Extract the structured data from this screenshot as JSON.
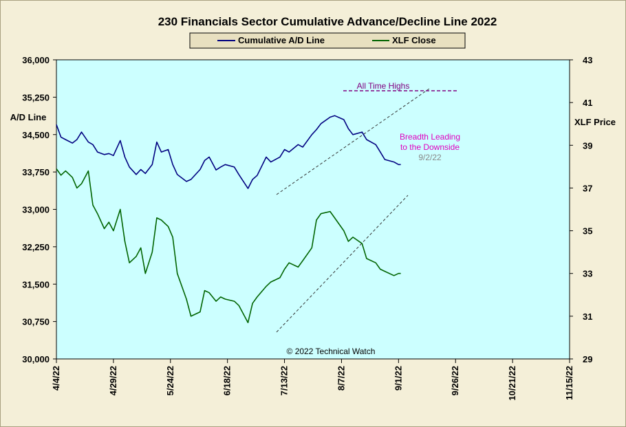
{
  "chart_data": {
    "type": "line",
    "title": "230 Financials  Sector Cumulative  Advance/Decline  Line 2022",
    "ylabel_left": "A/D Line",
    "ylabel_right": "XLF Price",
    "ylim_left": [
      30000,
      36000
    ],
    "ylim_right": [
      29,
      43
    ],
    "yticks_left": [
      "36,000",
      "35,250",
      "34,500",
      "33,750",
      "33,000",
      "32,250",
      "31,500",
      "30,750",
      "30,000"
    ],
    "yticks_right": [
      "43",
      "41",
      "39",
      "37",
      "35",
      "33",
      "31",
      "29"
    ],
    "x_ticks": [
      "4/4/22",
      "4/29/22",
      "5/24/22",
      "6/18/22",
      "7/13/22",
      "8/7/22",
      "9/1/22",
      "9/26/22",
      "10/21/22",
      "11/15/22"
    ],
    "x_range": [
      "4/4/22",
      "11/15/22"
    ],
    "grid": false,
    "legend_position": "top",
    "background_color": "#ccffff",
    "series": [
      {
        "name": "Cumulative A/D Line",
        "axis": "left",
        "color": "#000080",
        "x": [
          "4/4/22",
          "4/6/22",
          "4/8/22",
          "4/11/22",
          "4/13/22",
          "4/15/22",
          "4/18/22",
          "4/20/22",
          "4/22/22",
          "4/25/22",
          "4/27/22",
          "4/29/22",
          "5/2/22",
          "5/4/22",
          "5/6/22",
          "5/9/22",
          "5/11/22",
          "5/13/22",
          "5/16/22",
          "5/18/22",
          "5/20/22",
          "5/23/22",
          "5/25/22",
          "5/27/22",
          "5/31/22",
          "6/2/22",
          "6/6/22",
          "6/8/22",
          "6/10/22",
          "6/13/22",
          "6/15/22",
          "6/17/22",
          "6/21/22",
          "6/23/22",
          "6/27/22",
          "6/29/22",
          "7/1/22",
          "7/5/22",
          "7/7/22",
          "7/11/22",
          "7/13/22",
          "7/15/22",
          "7/19/22",
          "7/21/22",
          "7/25/22",
          "7/27/22",
          "7/29/22",
          "8/2/22",
          "8/4/22",
          "8/8/22",
          "8/10/22",
          "8/12/22",
          "8/16/22",
          "8/18/22",
          "8/22/22",
          "8/24/22",
          "8/26/22",
          "8/30/22",
          "9/1/22",
          "9/2/22"
        ],
        "values": [
          34700,
          34450,
          34400,
          34330,
          34400,
          34550,
          34350,
          34300,
          34150,
          34100,
          34120,
          34080,
          34380,
          34050,
          33850,
          33700,
          33800,
          33720,
          33900,
          34350,
          34150,
          34200,
          33900,
          33700,
          33560,
          33600,
          33800,
          33980,
          34050,
          33790,
          33850,
          33900,
          33850,
          33700,
          33420,
          33600,
          33680,
          34050,
          33950,
          34050,
          34200,
          34150,
          34300,
          34250,
          34500,
          34600,
          34720,
          34850,
          34880,
          34800,
          34620,
          34500,
          34550,
          34400,
          34300,
          34150,
          34000,
          33950,
          33900,
          33900
        ]
      },
      {
        "name": "XLF Close",
        "axis": "right",
        "color": "#006400",
        "x": [
          "4/4/22",
          "4/6/22",
          "4/8/22",
          "4/11/22",
          "4/13/22",
          "4/15/22",
          "4/18/22",
          "4/20/22",
          "4/22/22",
          "4/25/22",
          "4/27/22",
          "4/29/22",
          "5/2/22",
          "5/4/22",
          "5/6/22",
          "5/9/22",
          "5/11/22",
          "5/13/22",
          "5/16/22",
          "5/18/22",
          "5/20/22",
          "5/23/22",
          "5/25/22",
          "5/27/22",
          "5/31/22",
          "6/2/22",
          "6/6/22",
          "6/8/22",
          "6/10/22",
          "6/13/22",
          "6/15/22",
          "6/17/22",
          "6/21/22",
          "6/23/22",
          "6/27/22",
          "6/29/22",
          "7/1/22",
          "7/5/22",
          "7/7/22",
          "7/11/22",
          "7/13/22",
          "7/15/22",
          "7/19/22",
          "7/21/22",
          "7/25/22",
          "7/27/22",
          "7/29/22",
          "8/2/22",
          "8/4/22",
          "8/8/22",
          "8/10/22",
          "8/12/22",
          "8/16/22",
          "8/18/22",
          "8/22/22",
          "8/24/22",
          "8/26/22",
          "8/30/22",
          "9/1/22",
          "9/2/22"
        ],
        "values": [
          37.9,
          37.6,
          37.8,
          37.5,
          37.0,
          37.2,
          37.8,
          36.2,
          35.8,
          35.1,
          35.4,
          35.0,
          36.0,
          34.5,
          33.5,
          33.8,
          34.2,
          33.0,
          34.0,
          35.6,
          35.5,
          35.2,
          34.7,
          33.0,
          31.8,
          31.0,
          31.2,
          32.2,
          32.1,
          31.7,
          31.9,
          31.8,
          31.7,
          31.5,
          30.7,
          31.6,
          31.9,
          32.4,
          32.6,
          32.8,
          33.2,
          33.5,
          33.3,
          33.6,
          34.2,
          35.5,
          35.8,
          35.9,
          35.6,
          35.0,
          34.5,
          34.7,
          34.4,
          33.7,
          33.5,
          33.2,
          33.1,
          32.9,
          33.0,
          33.0
        ]
      }
    ],
    "annotations": {
      "all_time_highs": "All Time Highs",
      "breadth_line1": "Breadth Leading",
      "breadth_line2": "to the Downside",
      "date": "9/2/22",
      "copyright": "© 2022 Technical Watch"
    }
  }
}
